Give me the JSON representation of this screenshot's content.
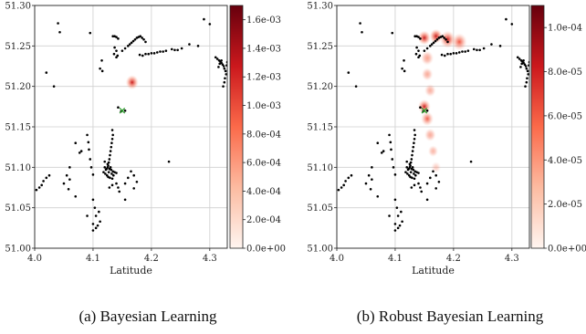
{
  "captions": [
    "(a) Bayesian Learning",
    "(b) Robust Bayesian Learning"
  ],
  "chart_data": [
    {
      "type": "heatmap",
      "xlabel": "Latitude",
      "ylabel": "",
      "xlim": [
        4.0,
        4.33
      ],
      "ylim": [
        51.0,
        51.3
      ],
      "x_ticks": [
        "4.0",
        "4.1",
        "4.2",
        "4.3"
      ],
      "y_ticks": [
        "51.00",
        "51.05",
        "51.10",
        "51.15",
        "51.20",
        "51.25",
        "51.30"
      ],
      "colorbar": {
        "min": 0.0,
        "max": 0.0017,
        "ticks": [
          "0.0e+00",
          "2.0e-04",
          "4.0e-04",
          "6.0e-04",
          "8.0e-04",
          "1.0e-03",
          "1.2e-03",
          "1.4e-03",
          "1.6e-03"
        ],
        "colors": [
          "#fff5f0",
          "#fcbba1",
          "#fb6a4a",
          "#cb181d",
          "#67000d"
        ]
      },
      "grid": true,
      "marker": {
        "x": 4.15,
        "y": 51.17,
        "color": "#2ca02c"
      },
      "density_blobs": [
        {
          "x": 4.167,
          "y": 51.205,
          "spread": 0.01,
          "level": 0.85
        }
      ]
    },
    {
      "type": "heatmap",
      "xlabel": "Latitude",
      "ylabel": "",
      "xlim": [
        4.0,
        4.33
      ],
      "ylim": [
        51.0,
        51.3
      ],
      "x_ticks": [
        "4.0",
        "4.1",
        "4.2",
        "4.3"
      ],
      "y_ticks": [
        "51.00",
        "51.05",
        "51.10",
        "51.15",
        "51.20",
        "51.25",
        "51.30"
      ],
      "colorbar": {
        "min": 0.0,
        "max": 0.00011,
        "ticks": [
          "0.0e+00",
          "2.0e-05",
          "4.0e-05",
          "6.0e-05",
          "8.0e-05",
          "1.0e-04"
        ],
        "colors": [
          "#fff5f0",
          "#fcbba1",
          "#fb6a4a",
          "#cb181d",
          "#67000d"
        ]
      },
      "grid": true,
      "marker": {
        "x": 4.15,
        "y": 51.17,
        "color": "#2ca02c"
      },
      "density_blobs": [
        {
          "x": 4.15,
          "y": 51.26,
          "spread": 0.01,
          "level": 0.85
        },
        {
          "x": 4.17,
          "y": 51.262,
          "spread": 0.01,
          "level": 0.95
        },
        {
          "x": 4.19,
          "y": 51.258,
          "spread": 0.012,
          "level": 0.8
        },
        {
          "x": 4.21,
          "y": 51.255,
          "spread": 0.012,
          "level": 0.6
        },
        {
          "x": 4.155,
          "y": 51.235,
          "spread": 0.01,
          "level": 0.45
        },
        {
          "x": 4.155,
          "y": 51.215,
          "spread": 0.009,
          "level": 0.4
        },
        {
          "x": 4.16,
          "y": 51.195,
          "spread": 0.009,
          "level": 0.35
        },
        {
          "x": 4.15,
          "y": 51.175,
          "spread": 0.01,
          "level": 0.75
        },
        {
          "x": 4.155,
          "y": 51.16,
          "spread": 0.01,
          "level": 0.55
        },
        {
          "x": 4.16,
          "y": 51.14,
          "spread": 0.009,
          "level": 0.4
        },
        {
          "x": 4.165,
          "y": 51.12,
          "spread": 0.008,
          "level": 0.3
        },
        {
          "x": 4.17,
          "y": 51.1,
          "spread": 0.008,
          "level": 0.12
        }
      ]
    }
  ],
  "scatter_points": [
    [
      4.04,
      51.278
    ],
    [
      4.043,
      51.267
    ],
    [
      4.02,
      51.217
    ],
    [
      4.033,
      51.2
    ],
    [
      4.095,
      51.266
    ],
    [
      4.115,
      51.232
    ],
    [
      4.112,
      51.222
    ],
    [
      4.116,
      51.219
    ],
    [
      4.137,
      51.248
    ],
    [
      4.14,
      51.244
    ],
    [
      4.136,
      51.24
    ],
    [
      4.142,
      51.238
    ],
    [
      4.14,
      51.236
    ],
    [
      4.134,
      51.262
    ],
    [
      4.137,
      51.262
    ],
    [
      4.14,
      51.261
    ],
    [
      4.143,
      51.259
    ],
    [
      4.15,
      51.244
    ],
    [
      4.155,
      51.247
    ],
    [
      4.16,
      51.25
    ],
    [
      4.163,
      51.252
    ],
    [
      4.166,
      51.254
    ],
    [
      4.169,
      51.256
    ],
    [
      4.172,
      51.258
    ],
    [
      4.175,
      51.26
    ],
    [
      4.178,
      51.261
    ],
    [
      4.181,
      51.262
    ],
    [
      4.184,
      51.26
    ],
    [
      4.187,
      51.258
    ],
    [
      4.19,
      51.255
    ],
    [
      4.18,
      51.239
    ],
    [
      4.185,
      51.238
    ],
    [
      4.19,
      51.24
    ],
    [
      4.195,
      51.24
    ],
    [
      4.2,
      51.241
    ],
    [
      4.205,
      51.241
    ],
    [
      4.21,
      51.242
    ],
    [
      4.215,
      51.243
    ],
    [
      4.22,
      51.243
    ],
    [
      4.225,
      51.244
    ],
    [
      4.235,
      51.246
    ],
    [
      4.24,
      51.245
    ],
    [
      4.245,
      51.245
    ],
    [
      4.252,
      51.247
    ],
    [
      4.265,
      51.252
    ],
    [
      4.28,
      51.25
    ],
    [
      4.29,
      51.283
    ],
    [
      4.3,
      51.277
    ],
    [
      4.31,
      51.236
    ],
    [
      4.313,
      51.234
    ],
    [
      4.316,
      51.232
    ],
    [
      4.318,
      51.231
    ],
    [
      4.32,
      51.229
    ],
    [
      4.322,
      51.227
    ],
    [
      4.324,
      51.225
    ],
    [
      4.325,
      51.222
    ],
    [
      4.327,
      51.219
    ],
    [
      4.328,
      51.215
    ],
    [
      4.326,
      51.21
    ],
    [
      4.325,
      51.205
    ],
    [
      4.323,
      51.2
    ],
    [
      4.32,
      51.232
    ],
    [
      4.317,
      51.228
    ],
    [
      4.315,
      51.224
    ],
    [
      4.33,
      51.23
    ],
    [
      4.329,
      51.226
    ],
    [
      4.148,
      51.169
    ],
    [
      4.155,
      51.17
    ],
    [
      4.143,
      51.174
    ],
    [
      4.133,
      51.146
    ],
    [
      4.134,
      51.14
    ],
    [
      4.133,
      51.135
    ],
    [
      4.132,
      51.13
    ],
    [
      4.131,
      51.125
    ],
    [
      4.13,
      51.12
    ],
    [
      4.129,
      51.115
    ],
    [
      4.128,
      51.11
    ],
    [
      4.127,
      51.106
    ],
    [
      4.126,
      51.102
    ],
    [
      4.125,
      51.1
    ],
    [
      4.128,
      51.098
    ],
    [
      4.131,
      51.097
    ],
    [
      4.134,
      51.095
    ],
    [
      4.137,
      51.094
    ],
    [
      4.14,
      51.093
    ],
    [
      4.12,
      51.1
    ],
    [
      4.123,
      51.098
    ],
    [
      4.118,
      51.094
    ],
    [
      4.121,
      51.092
    ],
    [
      4.124,
      51.09
    ],
    [
      4.126,
      51.088
    ],
    [
      4.129,
      51.087
    ],
    [
      4.132,
      51.092
    ],
    [
      4.135,
      51.09
    ],
    [
      4.122,
      51.097
    ],
    [
      4.127,
      51.094
    ],
    [
      4.13,
      51.1
    ],
    [
      4.125,
      51.104
    ],
    [
      4.12,
      51.107
    ],
    [
      4.133,
      51.086
    ],
    [
      4.14,
      51.08
    ],
    [
      4.143,
      51.075
    ],
    [
      4.145,
      51.07
    ],
    [
      4.155,
      51.06
    ],
    [
      4.133,
      51.078
    ],
    [
      4.128,
      51.075
    ],
    [
      4.09,
      51.14
    ],
    [
      4.092,
      51.131
    ],
    [
      4.093,
      51.122
    ],
    [
      4.095,
      51.11
    ],
    [
      4.097,
      51.1
    ],
    [
      4.1,
      51.091
    ],
    [
      4.08,
      51.12
    ],
    [
      4.077,
      51.118
    ],
    [
      4.06,
      51.1
    ],
    [
      4.055,
      51.09
    ],
    [
      4.06,
      51.085
    ],
    [
      4.05,
      51.08
    ],
    [
      4.058,
      51.073
    ],
    [
      4.1,
      51.06
    ],
    [
      4.103,
      51.05
    ],
    [
      4.105,
      51.04
    ],
    [
      4.1,
      51.03
    ],
    [
      4.105,
      51.025
    ],
    [
      4.1,
      51.022
    ],
    [
      4.108,
      51.028
    ],
    [
      4.112,
      51.033
    ],
    [
      4.11,
      51.045
    ],
    [
      4.025,
      51.09
    ],
    [
      4.02,
      51.087
    ],
    [
      4.015,
      51.083
    ],
    [
      4.012,
      51.078
    ],
    [
      4.008,
      51.075
    ],
    [
      4.003,
      51.072
    ],
    [
      4.07,
      51.13
    ],
    [
      4.07,
      51.064
    ],
    [
      4.09,
      51.04
    ],
    [
      4.165,
      51.095
    ],
    [
      4.17,
      51.09
    ],
    [
      4.16,
      51.087
    ],
    [
      4.155,
      51.08
    ],
    [
      4.175,
      51.082
    ],
    [
      4.17,
      51.074
    ],
    [
      4.23,
      51.107
    ]
  ]
}
